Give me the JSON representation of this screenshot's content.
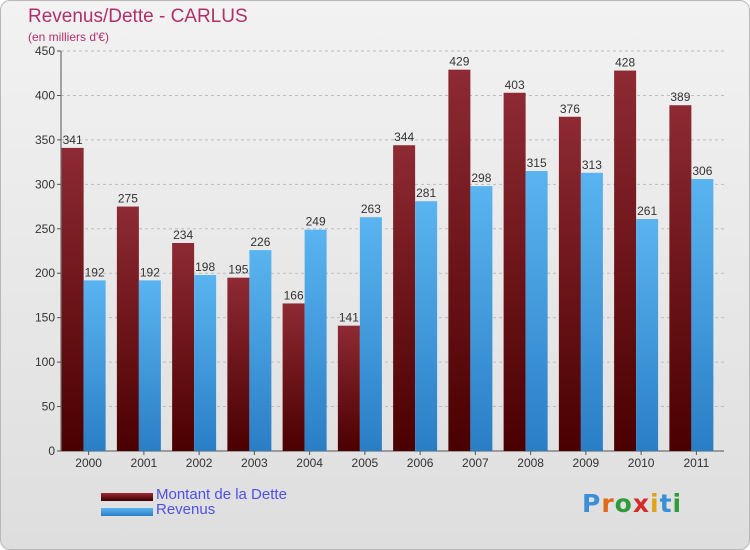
{
  "chart_data": {
    "type": "bar",
    "title": "Revenus/Dette - CARLUS",
    "subtitle": "(en milliers d'€)",
    "categories": [
      "2000",
      "2001",
      "2002",
      "2003",
      "2004",
      "2005",
      "2006",
      "2007",
      "2008",
      "2009",
      "2010",
      "2011"
    ],
    "series": [
      {
        "name": "Montant de la Dette",
        "color": "#7b1a22",
        "values": [
          341,
          275,
          234,
          195,
          166,
          141,
          344,
          429,
          403,
          376,
          428,
          389
        ]
      },
      {
        "name": "Revenus",
        "color": "#4da6e6",
        "values": [
          192,
          192,
          198,
          226,
          249,
          263,
          281,
          298,
          315,
          313,
          261,
          306
        ]
      }
    ],
    "ylim": [
      0,
      450
    ],
    "yticks": [
      0,
      50,
      100,
      150,
      200,
      250,
      300,
      350,
      400,
      450
    ],
    "grid": "horizontal dashed",
    "legend": "bottom-left"
  },
  "logo": {
    "letters": [
      "P",
      "r",
      "o",
      "x",
      "i",
      "t",
      "i"
    ]
  }
}
